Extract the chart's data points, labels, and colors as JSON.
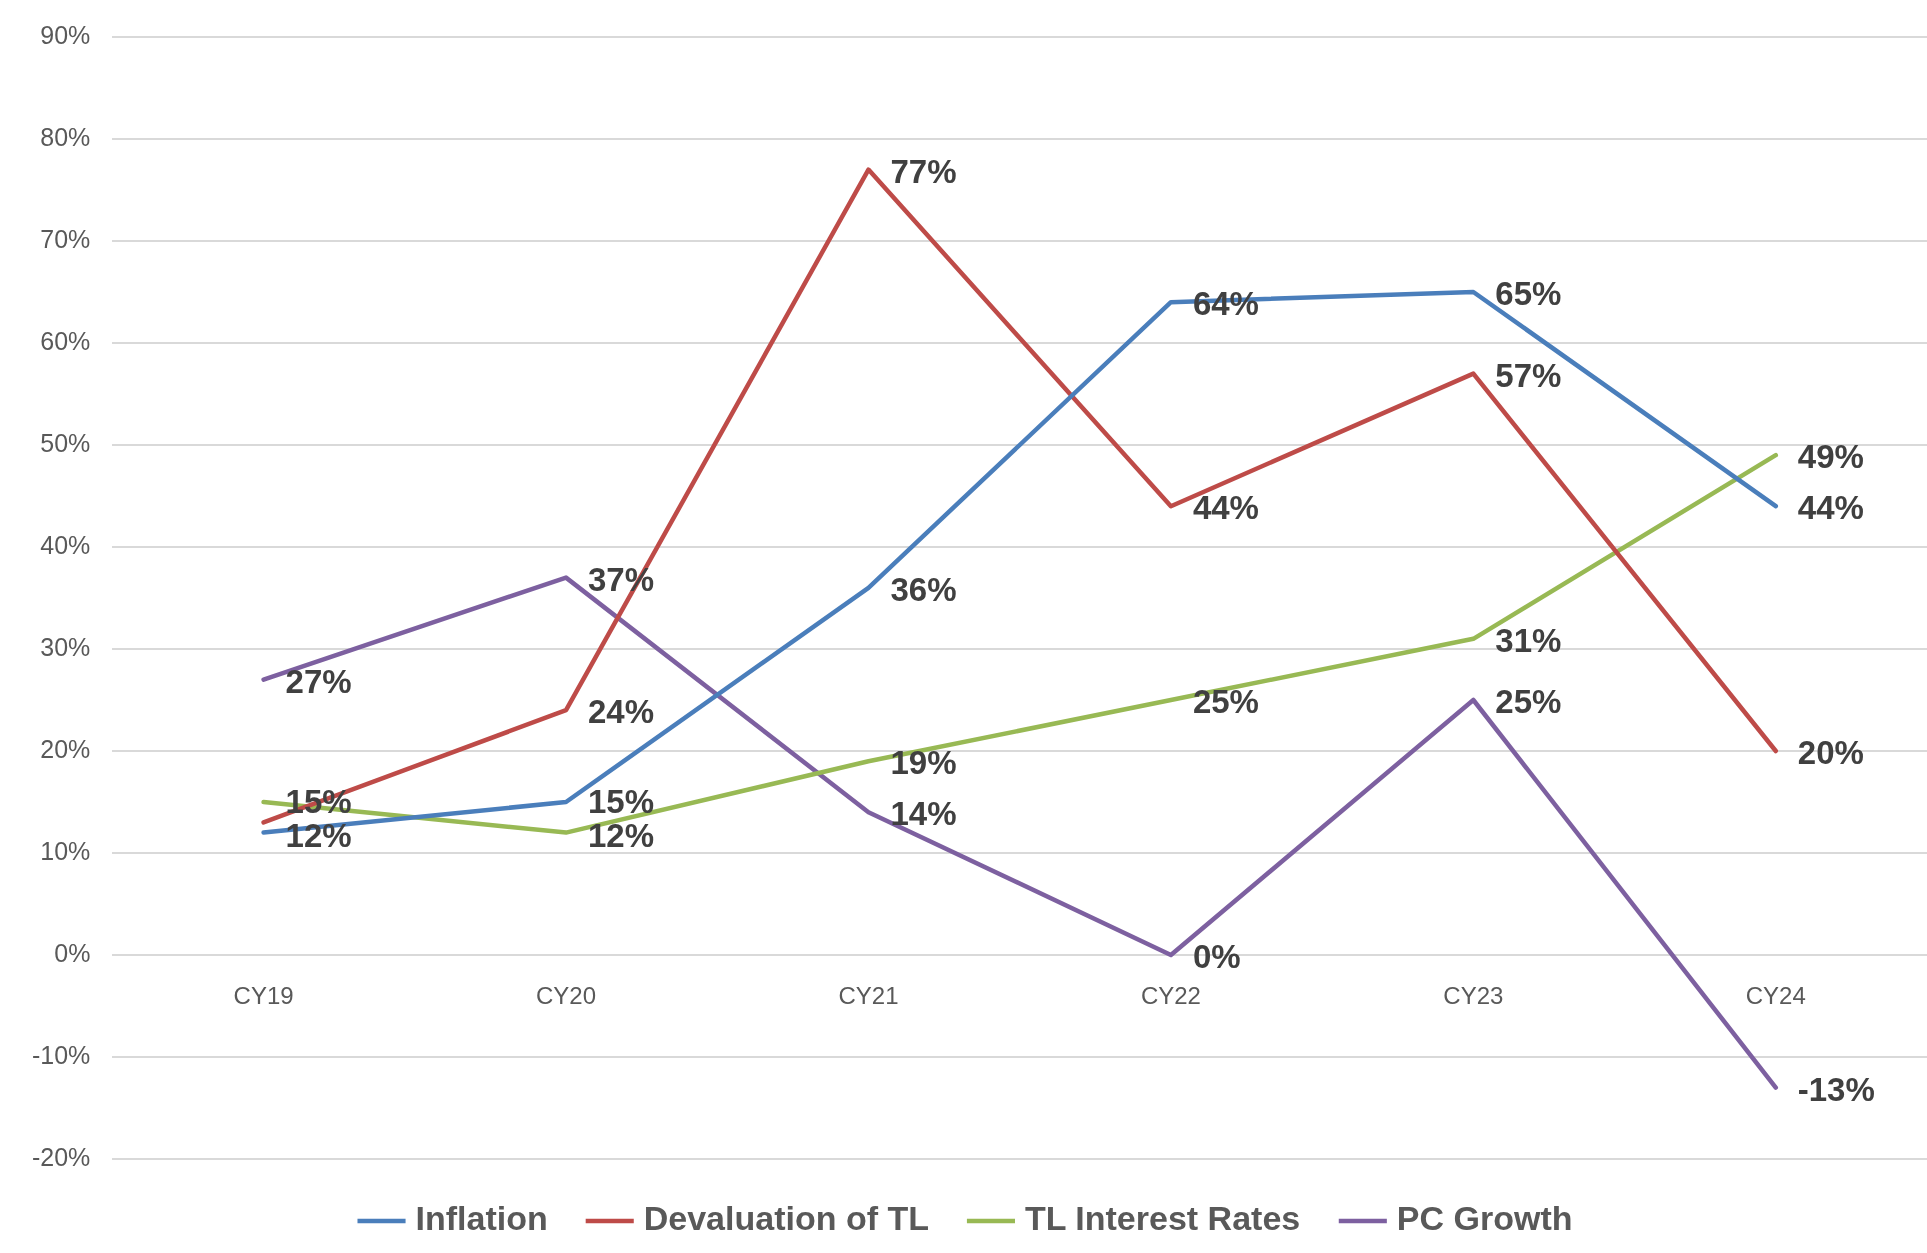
{
  "chart_data": {
    "type": "line",
    "categories": [
      "CY19",
      "CY20",
      "CY21",
      "CY22",
      "CY23",
      "CY24"
    ],
    "series": [
      {
        "name": "Inflation",
        "color": "#4a7ebb",
        "values": [
          12,
          15,
          36,
          64,
          65,
          44
        ],
        "value_labels": [
          "12%",
          "15%",
          "36%",
          "64%",
          "65%",
          "44%"
        ]
      },
      {
        "name": "Devaluation of TL",
        "color": "#be4b48",
        "values": [
          13,
          24,
          77,
          44,
          57,
          20
        ],
        "value_labels": [
          null,
          "24%",
          "77%",
          "44%",
          "57%",
          "20%"
        ]
      },
      {
        "name": "TL Interest Rates",
        "color": "#98b954",
        "values": [
          15,
          12,
          19,
          25,
          31,
          49
        ],
        "value_labels": [
          "15%",
          "12%",
          "19%",
          "25%",
          "31%",
          "49%"
        ]
      },
      {
        "name": "PC Growth",
        "color": "#7d60a0",
        "values": [
          27,
          37,
          14,
          0,
          25,
          -13
        ],
        "value_labels": [
          "27%",
          "37%",
          "14%",
          "0%",
          "25%",
          "-13%"
        ]
      }
    ],
    "ylim": [
      -20,
      90
    ],
    "yticks": [
      {
        "value": -20,
        "label": "-20%"
      },
      {
        "value": -10,
        "label": "-10%"
      },
      {
        "value": 0,
        "label": "0%"
      },
      {
        "value": 10,
        "label": "10%"
      },
      {
        "value": 20,
        "label": "20%"
      },
      {
        "value": 30,
        "label": "30%"
      },
      {
        "value": 40,
        "label": "40%"
      },
      {
        "value": 50,
        "label": "50%"
      },
      {
        "value": 60,
        "label": "60%"
      },
      {
        "value": 70,
        "label": "70%"
      },
      {
        "value": 80,
        "label": "80%"
      },
      {
        "value": 90,
        "label": "90%"
      }
    ],
    "grid": "y",
    "legend": "bottom",
    "marker": "none",
    "line_style": "solid"
  }
}
